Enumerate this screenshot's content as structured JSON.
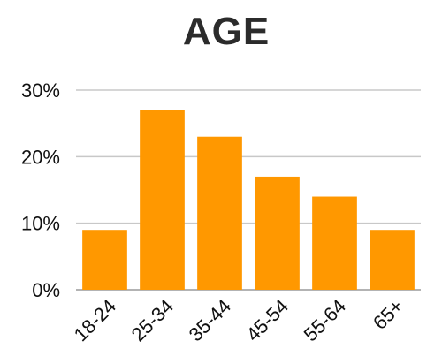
{
  "chart_data": {
    "type": "bar",
    "title": "AGE",
    "xlabel": "",
    "ylabel": "",
    "categories": [
      "18-24",
      "25-34",
      "35-44",
      "45-54",
      "55-64",
      "65+"
    ],
    "series": [
      {
        "values": [
          9,
          27,
          23,
          17,
          14,
          9
        ]
      }
    ],
    "ylim": [
      0,
      30
    ],
    "yticks": [
      0,
      10,
      20,
      30
    ],
    "ytick_labels": [
      "0%",
      "10%",
      "20%",
      "30%"
    ],
    "grid": true,
    "legend": "none",
    "bar_color": "#ff9800"
  }
}
